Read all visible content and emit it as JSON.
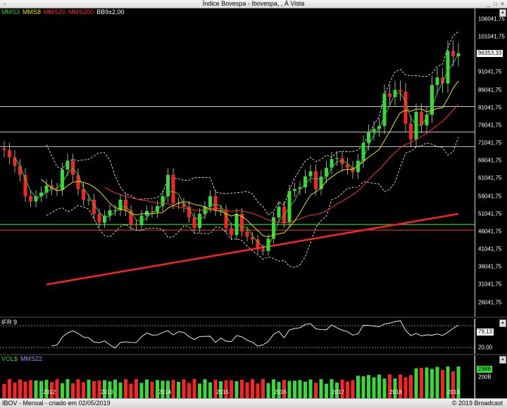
{
  "window": {
    "title": "Índice Bovespa - Ibovespa, , À Vista"
  },
  "main_legend": [
    {
      "label": "MMS3",
      "color": "#33cc33"
    },
    {
      "label": "MMS8",
      "color": "#e6e600"
    },
    {
      "label": "MMS20",
      "color": "#ff3333"
    },
    {
      "label": "MMS200",
      "color": "#ff3333"
    },
    {
      "label": "BB9±2,00",
      "color": "#ffffff"
    }
  ],
  "ifr_legend": {
    "label": "IFR 9",
    "color": "#ffffff"
  },
  "vol_legend": [
    {
      "label": "VOL$",
      "color": "#33cc33"
    },
    {
      "label": "MMS22",
      "color": "#9999ff"
    }
  ],
  "footer": {
    "left": "IBOV - Mensal - criado em 02/05/2019",
    "right": "© 2019 Broadcast"
  },
  "price_axis": [
    "106041,75",
    "101041,75",
    "96353,33",
    "91041,75",
    "86041,75",
    "81041,75",
    "76041,75",
    "71041,75",
    "66041,75",
    "61041,75",
    "56041,75",
    "51041,75",
    "46041,75",
    "41041,75",
    "36041,75",
    "31041,75",
    "26041,75"
  ],
  "ifr_axis": {
    "current": "79,13",
    "low": "20,00"
  },
  "vol_axis": {
    "current": "2988",
    "low": "200B"
  },
  "years": [
    "2012",
    "2013",
    "2014",
    "2015",
    "2016",
    "2017",
    "2018",
    "2019"
  ],
  "colors": {
    "up": "#33dd33",
    "down": "#ff2222",
    "mms3": "#33cc33",
    "mms8": "#e6e600",
    "mms20": "#ff3333",
    "mms200": "#ff2222",
    "bb": "#ffffff",
    "hline_green": "#33ff33",
    "hline_red": "#ff3333",
    "hline_gray": "#cccccc"
  },
  "chart_data": [
    {
      "type": "candlestick",
      "title": "Índice Bovespa - Ibovespa, , À Vista",
      "ylim": [
        22000,
        109000
      ],
      "x_ticks": [
        "2012",
        "2013",
        "2014",
        "2015",
        "2016",
        "2017",
        "2018",
        "2019"
      ],
      "horizontal_levels": [
        {
          "value": 81300,
          "color": "#cccccc"
        },
        {
          "value": 74100,
          "color": "#cccccc"
        },
        {
          "value": 70000,
          "color": "#cccccc"
        },
        {
          "value": 48000,
          "color": "#33ff33"
        },
        {
          "value": 46400,
          "color": "#ff3333"
        }
      ],
      "last_price": 96353.33,
      "closes_monthly": [
        69000,
        67000,
        64500,
        62000,
        56000,
        54500,
        56000,
        57000,
        59000,
        58000,
        57800,
        63500,
        66000,
        62000,
        58000,
        55000,
        55000,
        51000,
        48500,
        50500,
        52000,
        52000,
        55000,
        52000,
        48000,
        47800,
        50500,
        51800,
        51500,
        53200,
        56000,
        62000,
        54000,
        54000,
        53000,
        50000,
        47000,
        51000,
        53000,
        56000,
        52000,
        52000,
        47000,
        45000,
        51000,
        46000,
        44500,
        43800,
        41000,
        40500,
        44000,
        50000,
        53000,
        48500,
        57500,
        58000,
        58500,
        61600,
        63000,
        58000,
        61500,
        64000,
        66500,
        66700,
        65000,
        64000,
        62800,
        66000,
        71000,
        74000,
        75000,
        75800,
        85000,
        84000,
        86000,
        85500,
        76500,
        72000,
        79800,
        76000,
        79000,
        87400,
        89500,
        87800,
        97000,
        95500,
        96353
      ]
    },
    {
      "type": "line",
      "title": "IFR 9",
      "current_value": 79.13,
      "reference": 20
    },
    {
      "type": "bar",
      "title": "VOL$",
      "current_value": 2988,
      "axis_label": "200B"
    }
  ]
}
